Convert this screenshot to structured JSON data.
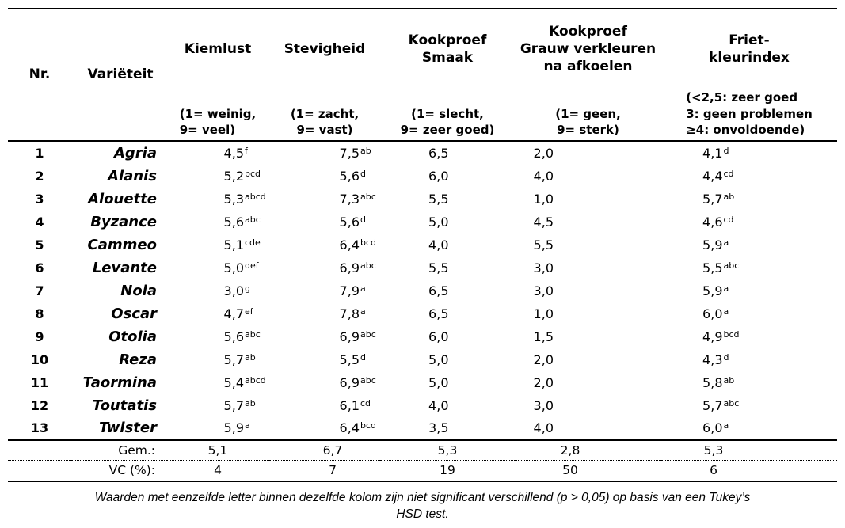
{
  "table": {
    "columns": [
      {
        "key": "nr",
        "title": "Nr.",
        "scale": ""
      },
      {
        "key": "variety",
        "title": "Variëteit",
        "scale": ""
      },
      {
        "key": "kiemlust",
        "title": "Kiemlust",
        "scale": "(1= weinig,\n9= veel)"
      },
      {
        "key": "stevigheid",
        "title": "Stevigheid",
        "scale": "(1= zacht,\n9= vast)"
      },
      {
        "key": "smaak",
        "title": "Kookproef\nSmaak",
        "scale": "(1= slecht,\n9= zeer goed)"
      },
      {
        "key": "grauw",
        "title": "Kookproef\nGrauw verkleuren\nna afkoelen",
        "scale": "(1= geen,\n9= sterk)"
      },
      {
        "key": "friet",
        "title": "Friet-\nkleurindex",
        "scale": "(<2,5: zeer goed\n3: geen problemen\n≥4: onvoldoende)"
      }
    ],
    "rows": [
      {
        "nr": "1",
        "variety": "Agria",
        "kiemlust": {
          "v": "4,5",
          "sup": "f"
        },
        "stevigheid": {
          "v": "7,5",
          "sup": "ab"
        },
        "smaak": {
          "v": "6,5",
          "sup": ""
        },
        "grauw": {
          "v": "2,0",
          "sup": ""
        },
        "friet": {
          "v": "4,1",
          "sup": "d"
        }
      },
      {
        "nr": "2",
        "variety": "Alanis",
        "kiemlust": {
          "v": "5,2",
          "sup": "bcd"
        },
        "stevigheid": {
          "v": "5,6",
          "sup": "d"
        },
        "smaak": {
          "v": "6,0",
          "sup": ""
        },
        "grauw": {
          "v": "4,0",
          "sup": ""
        },
        "friet": {
          "v": "4,4",
          "sup": "cd"
        }
      },
      {
        "nr": "3",
        "variety": "Alouette",
        "kiemlust": {
          "v": "5,3",
          "sup": "abcd"
        },
        "stevigheid": {
          "v": "7,3",
          "sup": "abc"
        },
        "smaak": {
          "v": "5,5",
          "sup": ""
        },
        "grauw": {
          "v": "1,0",
          "sup": ""
        },
        "friet": {
          "v": "5,7",
          "sup": "ab"
        }
      },
      {
        "nr": "4",
        "variety": "Byzance",
        "kiemlust": {
          "v": "5,6",
          "sup": "abc"
        },
        "stevigheid": {
          "v": "5,6",
          "sup": "d"
        },
        "smaak": {
          "v": "5,0",
          "sup": ""
        },
        "grauw": {
          "v": "4,5",
          "sup": ""
        },
        "friet": {
          "v": "4,6",
          "sup": "cd"
        }
      },
      {
        "nr": "5",
        "variety": "Cammeo",
        "kiemlust": {
          "v": "5,1",
          "sup": "cde"
        },
        "stevigheid": {
          "v": "6,4",
          "sup": "bcd"
        },
        "smaak": {
          "v": "4,0",
          "sup": ""
        },
        "grauw": {
          "v": "5,5",
          "sup": ""
        },
        "friet": {
          "v": "5,9",
          "sup": "a"
        }
      },
      {
        "nr": "6",
        "variety": "Levante",
        "kiemlust": {
          "v": "5,0",
          "sup": "def"
        },
        "stevigheid": {
          "v": "6,9",
          "sup": "abc"
        },
        "smaak": {
          "v": "5,5",
          "sup": ""
        },
        "grauw": {
          "v": "3,0",
          "sup": ""
        },
        "friet": {
          "v": "5,5",
          "sup": "abc"
        }
      },
      {
        "nr": "7",
        "variety": "Nola",
        "kiemlust": {
          "v": "3,0",
          "sup": "g"
        },
        "stevigheid": {
          "v": "7,9",
          "sup": "a"
        },
        "smaak": {
          "v": "6,5",
          "sup": ""
        },
        "grauw": {
          "v": "3,0",
          "sup": ""
        },
        "friet": {
          "v": "5,9",
          "sup": "a"
        }
      },
      {
        "nr": "8",
        "variety": "Oscar",
        "kiemlust": {
          "v": "4,7",
          "sup": "ef"
        },
        "stevigheid": {
          "v": "7,8",
          "sup": "a"
        },
        "smaak": {
          "v": "6,5",
          "sup": ""
        },
        "grauw": {
          "v": "1,0",
          "sup": ""
        },
        "friet": {
          "v": "6,0",
          "sup": "a"
        }
      },
      {
        "nr": "9",
        "variety": "Otolia",
        "kiemlust": {
          "v": "5,6",
          "sup": "abc"
        },
        "stevigheid": {
          "v": "6,9",
          "sup": "abc"
        },
        "smaak": {
          "v": "6,0",
          "sup": ""
        },
        "grauw": {
          "v": "1,5",
          "sup": ""
        },
        "friet": {
          "v": "4,9",
          "sup": "bcd"
        }
      },
      {
        "nr": "10",
        "variety": "Reza",
        "kiemlust": {
          "v": "5,7",
          "sup": "ab"
        },
        "stevigheid": {
          "v": "5,5",
          "sup": "d"
        },
        "smaak": {
          "v": "5,0",
          "sup": ""
        },
        "grauw": {
          "v": "2,0",
          "sup": ""
        },
        "friet": {
          "v": "4,3",
          "sup": "d"
        }
      },
      {
        "nr": "11",
        "variety": "Taormina",
        "kiemlust": {
          "v": "5,4",
          "sup": "abcd"
        },
        "stevigheid": {
          "v": "6,9",
          "sup": "abc"
        },
        "smaak": {
          "v": "5,0",
          "sup": ""
        },
        "grauw": {
          "v": "2,0",
          "sup": ""
        },
        "friet": {
          "v": "5,8",
          "sup": "ab"
        }
      },
      {
        "nr": "12",
        "variety": "Toutatis",
        "kiemlust": {
          "v": "5,7",
          "sup": "ab"
        },
        "stevigheid": {
          "v": "6,1",
          "sup": "cd"
        },
        "smaak": {
          "v": "4,0",
          "sup": ""
        },
        "grauw": {
          "v": "3,0",
          "sup": ""
        },
        "friet": {
          "v": "5,7",
          "sup": "abc"
        }
      },
      {
        "nr": "13",
        "variety": "Twister",
        "kiemlust": {
          "v": "5,9",
          "sup": "a"
        },
        "stevigheid": {
          "v": "6,4",
          "sup": "bcd"
        },
        "smaak": {
          "v": "3,5",
          "sup": ""
        },
        "grauw": {
          "v": "4,0",
          "sup": ""
        },
        "friet": {
          "v": "6,0",
          "sup": "a"
        }
      }
    ],
    "summary": [
      {
        "label": "Gem.:",
        "values": [
          "5,1",
          "6,7",
          "5,3",
          "2,8",
          "5,3"
        ]
      },
      {
        "label": "VC (%):",
        "values": [
          "4",
          "7",
          "19",
          "50",
          "6"
        ]
      }
    ],
    "footnote": "Waarden met eenzelfde letter binnen dezelfde kolom zijn niet significant verschillend (p > 0,05) op basis van een Tukey’s\nHSD test."
  }
}
